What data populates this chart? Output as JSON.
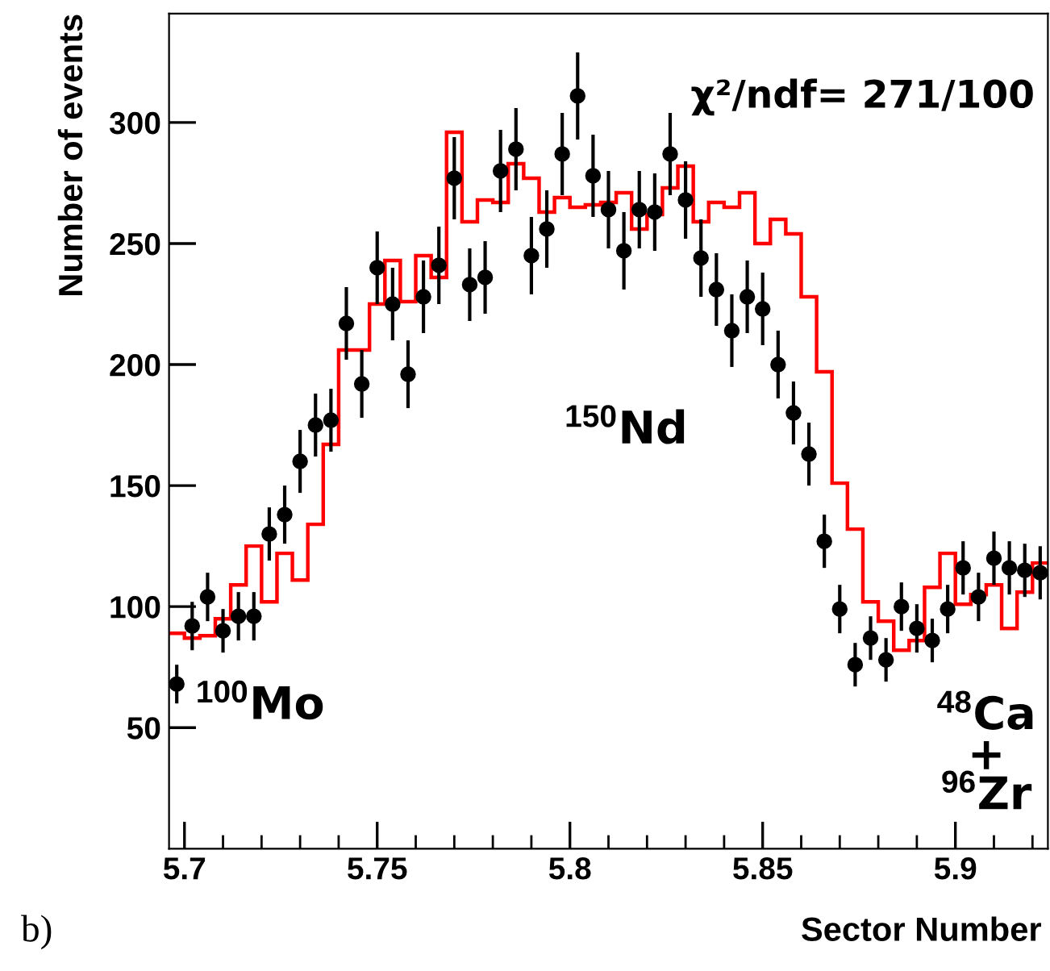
{
  "chart_data": {
    "type": "histogram",
    "xlabel": "Sector Number",
    "ylabel": "Number of events",
    "annotations": [
      "χ²/ndf= 271/100",
      "$^{100}$Mo",
      "$^{150}$Nd",
      "$^{48}$Ca\n+\n$^{96}$Zr",
      "b)"
    ],
    "bins": [
      5.696,
      5.7,
      5.704,
      5.708,
      5.712,
      5.716,
      5.72,
      5.724,
      5.728,
      5.732,
      5.736,
      5.74,
      5.744,
      5.748,
      5.752,
      5.756,
      5.76,
      5.764,
      5.768,
      5.772,
      5.776,
      5.78,
      5.784,
      5.788,
      5.792,
      5.796,
      5.8,
      5.804,
      5.808,
      5.812,
      5.816,
      5.82,
      5.824,
      5.828,
      5.832,
      5.836,
      5.84,
      5.844,
      5.848,
      5.852,
      5.856,
      5.86,
      5.864,
      5.868,
      5.872,
      5.876,
      5.88,
      5.884,
      5.888,
      5.892,
      5.896,
      5.9,
      5.904,
      5.908,
      5.912,
      5.916,
      5.92,
      5.924
    ],
    "series": [
      {
        "type": "scatter",
        "color": "#000000",
        "marker": "circle",
        "x": [
          5.698,
          5.702,
          5.706,
          5.71,
          5.714,
          5.718,
          5.722,
          5.726,
          5.73,
          5.734,
          5.738,
          5.742,
          5.746,
          5.75,
          5.754,
          5.758,
          5.762,
          5.766,
          5.77,
          5.774,
          5.778,
          5.782,
          5.786,
          5.79,
          5.794,
          5.798,
          5.802,
          5.806,
          5.81,
          5.814,
          5.818,
          5.822,
          5.826,
          5.83,
          5.834,
          5.838,
          5.842,
          5.846,
          5.85,
          5.854,
          5.858,
          5.862,
          5.866,
          5.87,
          5.874,
          5.878,
          5.882,
          5.886,
          5.89,
          5.894,
          5.898,
          5.902,
          5.906,
          5.91,
          5.914,
          5.918,
          5.922
        ],
        "values": [
          68,
          92,
          104,
          90,
          96,
          96,
          130,
          138,
          160,
          175,
          177,
          217,
          192,
          240,
          225,
          196,
          228,
          241,
          277,
          233,
          236,
          280,
          289,
          245,
          256,
          287,
          311,
          278,
          264,
          247,
          264,
          263,
          287,
          268,
          244,
          231,
          214,
          228,
          223,
          200,
          180,
          163,
          127,
          99,
          76,
          87,
          78,
          100,
          91,
          86,
          99,
          116,
          104,
          120,
          116,
          115,
          114
        ],
        "errors": [
          8,
          10,
          10,
          9,
          10,
          10,
          11,
          12,
          13,
          13,
          13,
          15,
          14,
          15,
          15,
          14,
          15,
          16,
          17,
          15,
          15,
          17,
          17,
          16,
          16,
          17,
          18,
          17,
          16,
          16,
          16,
          16,
          17,
          16,
          16,
          15,
          15,
          15,
          15,
          14,
          13,
          13,
          11,
          10,
          9,
          9,
          9,
          10,
          10,
          9,
          10,
          11,
          10,
          11,
          11,
          11,
          11
        ]
      },
      {
        "color": "#ff0000",
        "values": [
          89,
          87,
          88,
          95,
          109,
          125,
          102,
          122,
          111,
          134,
          167,
          206,
          206,
          225,
          243,
          226,
          245,
          236,
          296,
          259,
          268,
          267,
          283,
          277,
          263,
          269,
          265,
          266,
          267,
          271,
          256,
          262,
          273,
          282,
          259,
          267,
          265,
          271,
          250,
          260,
          254,
          228,
          197,
          151,
          132,
          102,
          94,
          82,
          86,
          108,
          122,
          101,
          105,
          109,
          91,
          106,
          118
        ]
      }
    ],
    "xlim": [
      5.696,
      5.924
    ],
    "ylim": [
      0,
      345
    ],
    "xticks": [
      5.7,
      5.75,
      5.8,
      5.85,
      5.9
    ],
    "yticks": [
      50,
      100,
      150,
      200,
      250,
      300
    ],
    "grid": false,
    "legend": false
  }
}
